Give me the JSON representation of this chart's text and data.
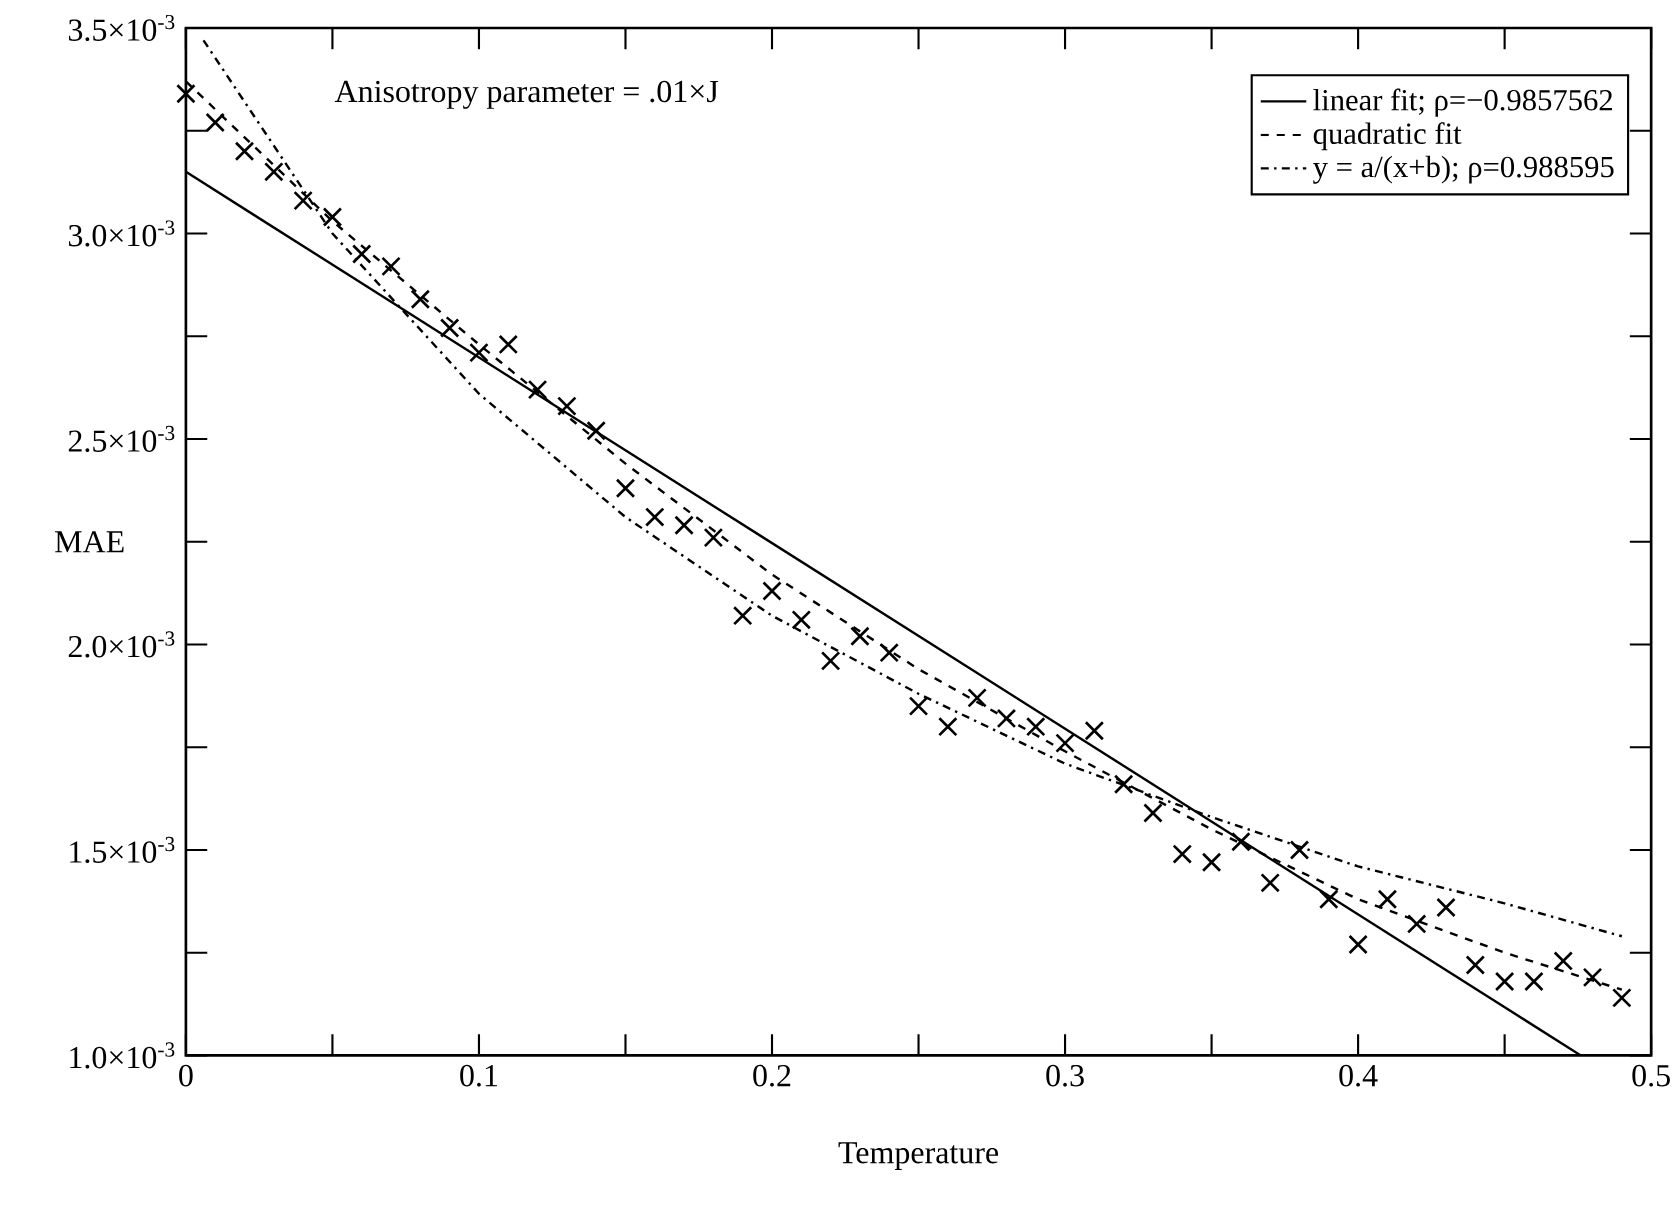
{
  "chart_data": {
    "type": "scatter",
    "xlabel": "Temperature",
    "ylabel": "MAE",
    "annotations": [
      "Anisotropy parameter = .01×J"
    ],
    "x": [
      0,
      0.01,
      0.02,
      0.03,
      0.04,
      0.05,
      0.06,
      0.07,
      0.08,
      0.09,
      0.1,
      0.11,
      0.12,
      0.13,
      0.14,
      0.15,
      0.16,
      0.17,
      0.18,
      0.19,
      0.2,
      0.21,
      0.22,
      0.23,
      0.24,
      0.25,
      0.26,
      0.27,
      0.28,
      0.29,
      0.3,
      0.31,
      0.32,
      0.33,
      0.34,
      0.35,
      0.36,
      0.37,
      0.38,
      0.39,
      0.4,
      0.41,
      0.42,
      0.43,
      0.44,
      0.45,
      0.46,
      0.47,
      0.48,
      0.49
    ],
    "series": [
      {
        "marker": "cross",
        "color": "#000000",
        "values": [
          0.00334,
          0.00327,
          0.0032,
          0.00315,
          0.00308,
          0.00304,
          0.00295,
          0.00292,
          0.00284,
          0.00277,
          0.00271,
          0.00273,
          0.00262,
          0.00258,
          0.00252,
          0.00238,
          0.00231,
          0.00229,
          0.00226,
          0.00207,
          0.00213,
          0.00206,
          0.00196,
          0.00202,
          0.00198,
          0.00185,
          0.0018,
          0.00187,
          0.00182,
          0.0018,
          0.00176,
          0.00179,
          0.00166,
          0.00159,
          0.00149,
          0.00147,
          0.00152,
          0.00142,
          0.0015,
          0.00138,
          0.00127,
          0.00138,
          0.00132,
          0.00136,
          0.00122,
          0.00118,
          0.00118,
          0.00123,
          0.00119,
          0.00114
        ]
      },
      {
        "type": "line",
        "name": "linear fit;   ρ=−0.9857562",
        "line_style": "solid",
        "color": "#000000",
        "x": [
          0,
          0.476
        ],
        "values": [
          0.00315,
          0.001
        ]
      },
      {
        "type": "line",
        "name": "quadratic fit",
        "line_style": "dashed",
        "color": "#000000",
        "x": [
          0,
          0.05,
          0.1,
          0.15,
          0.2,
          0.25,
          0.3,
          0.35,
          0.4,
          0.45,
          0.49
        ],
        "values": [
          0.00337,
          0.00303,
          0.00273,
          0.00244,
          0.00217,
          0.00194,
          0.00174,
          0.00155,
          0.00138,
          0.00125,
          0.00116
        ]
      },
      {
        "type": "line",
        "name": "y = a/(x+b);   ρ=0.988595",
        "line_style": "dashdot",
        "color": "#000000",
        "x": [
          0.006,
          0.05,
          0.1,
          0.15,
          0.2,
          0.25,
          0.3,
          0.35,
          0.4,
          0.45,
          0.49
        ],
        "values": [
          0.00347,
          0.003,
          0.00261,
          0.00231,
          0.00207,
          0.00188,
          0.00171,
          0.00158,
          0.00146,
          0.00137,
          0.00129
        ]
      }
    ],
    "xlim": [
      0,
      0.5
    ],
    "ylim": [
      0.001,
      0.0035
    ],
    "xticks": [
      0,
      0.1,
      0.2,
      0.3,
      0.4,
      0.5,
      {
        "value": 0.05,
        "label": null
      },
      {
        "value": 0.15,
        "label": null
      },
      {
        "value": 0.25,
        "label": null
      },
      {
        "value": 0.35,
        "label": null
      },
      {
        "value": 0.45,
        "label": null
      }
    ],
    "yticks": [
      {
        "value": 0.001,
        "label": "1.0×10$^{-3}$"
      },
      {
        "value": 0.0015,
        "label": "1.5×10$^{-3}$"
      },
      {
        "value": 0.002,
        "label": "2.0×10$^{-3}$"
      },
      {
        "value": 0.0025,
        "label": "2.5×10$^{-3}$"
      },
      {
        "value": 0.003,
        "label": "3.0×10$^{-3}$"
      },
      {
        "value": 0.0035,
        "label": "3.5×10$^{-3}$"
      },
      {
        "value": 0.00125,
        "label": null
      },
      {
        "value": 0.00175,
        "label": null
      },
      {
        "value": 0.00225,
        "label": null
      },
      {
        "value": 0.00275,
        "label": null
      },
      {
        "value": 0.00325,
        "label": null
      }
    ],
    "grid": false,
    "legend": "top right"
  }
}
